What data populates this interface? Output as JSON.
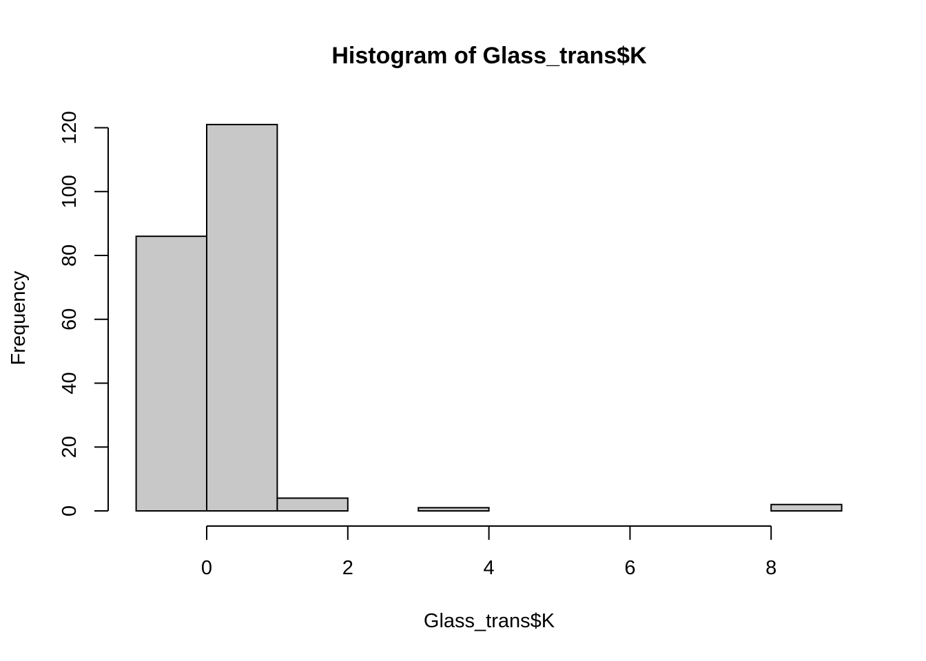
{
  "chart_data": {
    "type": "bar",
    "title": "Histogram of Glass_trans$K",
    "xlabel": "Glass_trans$K",
    "ylabel": "Frequency",
    "bins": [
      {
        "start": -1,
        "end": 0,
        "count": 86
      },
      {
        "start": 0,
        "end": 1,
        "count": 121
      },
      {
        "start": 1,
        "end": 2,
        "count": 4
      },
      {
        "start": 2,
        "end": 3,
        "count": 0
      },
      {
        "start": 3,
        "end": 4,
        "count": 1
      },
      {
        "start": 4,
        "end": 5,
        "count": 0
      },
      {
        "start": 5,
        "end": 6,
        "count": 0
      },
      {
        "start": 6,
        "end": 7,
        "count": 0
      },
      {
        "start": 7,
        "end": 8,
        "count": 0
      },
      {
        "start": 8,
        "end": 9,
        "count": 2
      }
    ],
    "x_ticks": [
      0,
      2,
      4,
      6,
      8
    ],
    "y_ticks": [
      0,
      20,
      40,
      60,
      80,
      100,
      120
    ],
    "xlim": [
      -1,
      9
    ],
    "ylim": [
      0,
      120
    ],
    "bar_color": "#c8c8c8",
    "grid": false,
    "legend": "none"
  }
}
